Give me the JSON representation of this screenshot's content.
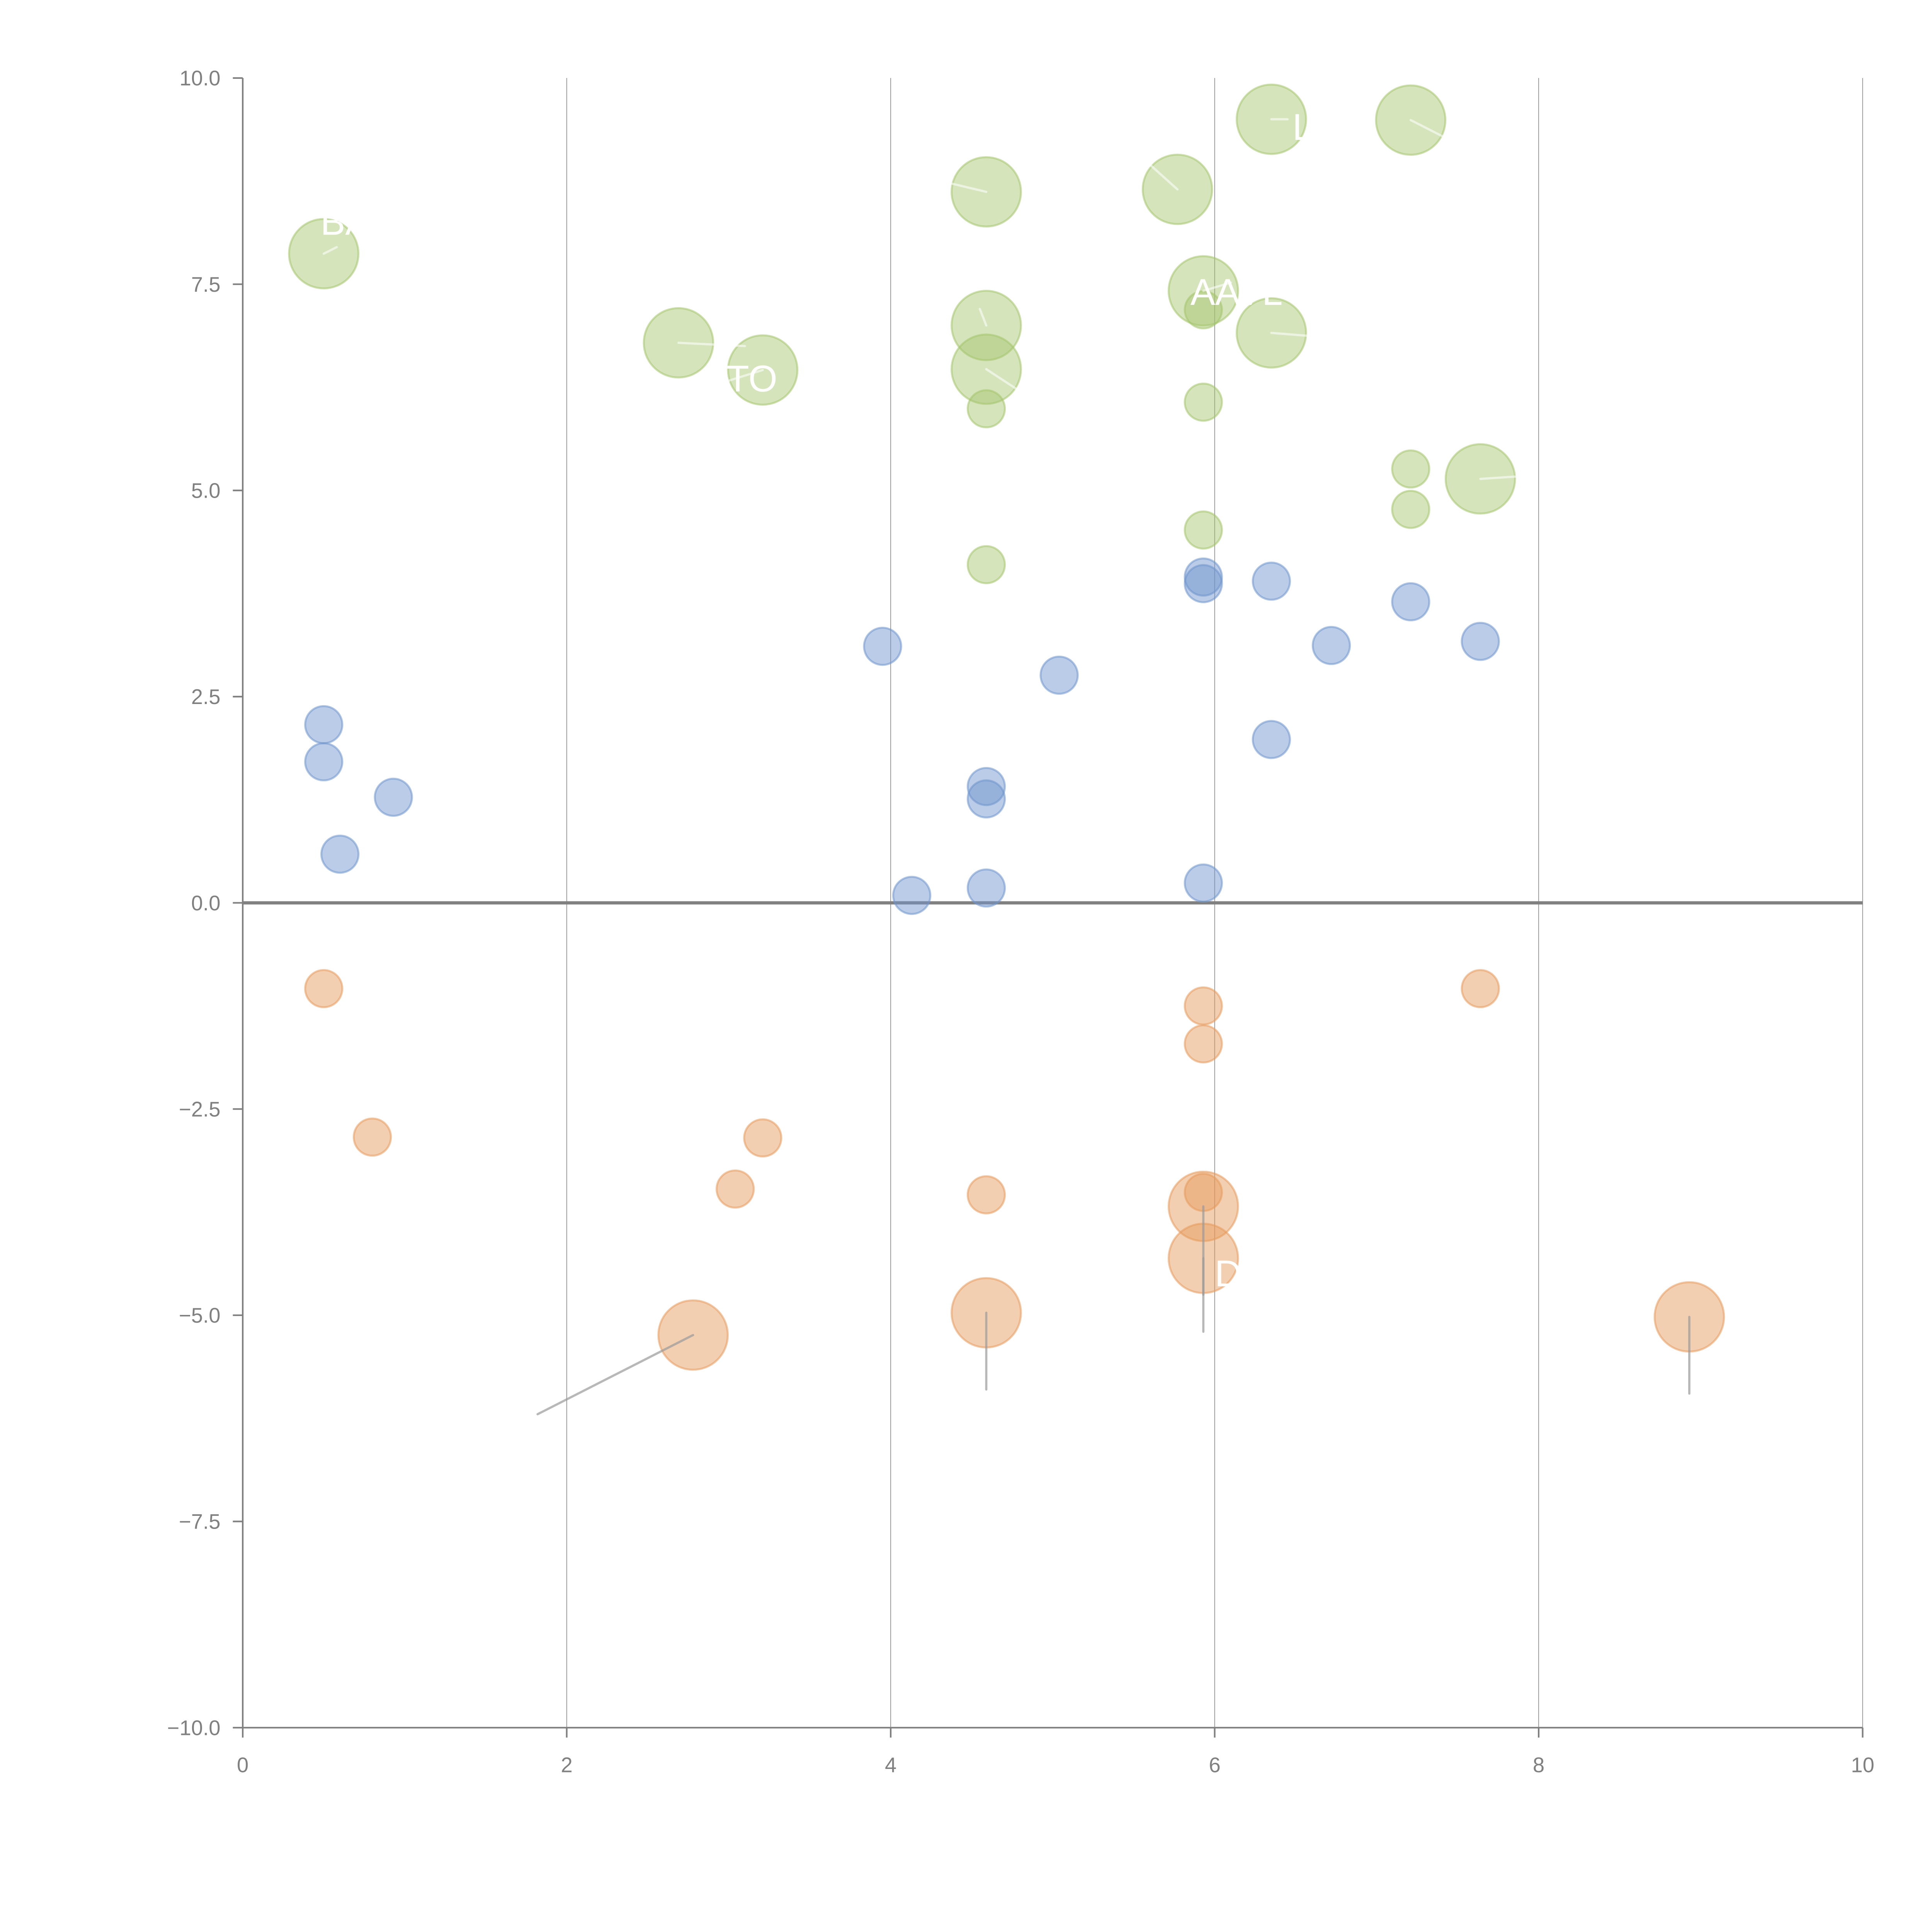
{
  "chart_data": {
    "type": "scatter",
    "title": "",
    "xlabel": "",
    "ylabel": "",
    "xlim": [
      0,
      10
    ],
    "ylim": [
      -10,
      10
    ],
    "grid": "vertical gridlines at x ticks",
    "zero_line": true,
    "legend": "none",
    "x_ticks": [
      "0",
      "2",
      "4",
      "6",
      "8",
      "10"
    ],
    "x_tick_values": [
      0,
      2,
      4,
      6,
      8,
      10
    ],
    "y_ticks": [
      "10.0",
      "7.5",
      "5.0",
      "2.5",
      "0.0",
      "−2.5",
      "−5.0",
      "−7.5",
      "−10.0"
    ],
    "y_tick_values": [
      10,
      7.5,
      5,
      2.5,
      0,
      -2.5,
      -5,
      -7.5,
      -10
    ],
    "series": [
      {
        "name": "blue",
        "color": "#6f95cc",
        "points": [
          {
            "x": 0.5,
            "y": 2.16,
            "size": "small"
          },
          {
            "x": 0.5,
            "y": 1.71,
            "size": "small"
          },
          {
            "x": 0.93,
            "y": 1.28,
            "size": "small"
          },
          {
            "x": 0.6,
            "y": 0.59,
            "size": "small"
          },
          {
            "x": 3.95,
            "y": 3.11,
            "size": "small"
          },
          {
            "x": 4.13,
            "y": 0.09,
            "size": "small"
          },
          {
            "x": 5.04,
            "y": 2.76,
            "size": "small"
          },
          {
            "x": 4.59,
            "y": 1.41,
            "size": "small"
          },
          {
            "x": 4.59,
            "y": 1.26,
            "size": "small"
          },
          {
            "x": 4.59,
            "y": 0.18,
            "size": "small"
          },
          {
            "x": 5.93,
            "y": 3.95,
            "size": "small"
          },
          {
            "x": 5.93,
            "y": 3.87,
            "size": "small"
          },
          {
            "x": 5.93,
            "y": 0.24,
            "size": "small"
          },
          {
            "x": 6.35,
            "y": 3.9,
            "size": "small"
          },
          {
            "x": 6.72,
            "y": 3.12,
            "size": "small"
          },
          {
            "x": 6.35,
            "y": 1.98,
            "size": "small"
          },
          {
            "x": 7.21,
            "y": 3.65,
            "size": "small"
          },
          {
            "x": 7.64,
            "y": 3.17,
            "size": "small"
          }
        ]
      },
      {
        "name": "green",
        "color": "#a4c46b",
        "points": [
          {
            "x": 0.5,
            "y": 7.87,
            "size": "large",
            "label": "BA",
            "label_at": [
              0.58,
              7.95
            ],
            "label_text_at": [
              0.48,
              8.1
            ]
          },
          {
            "x": 2.69,
            "y": 6.79,
            "size": "large",
            "label_at": [
              3.1,
              6.75
            ]
          },
          {
            "x": 3.21,
            "y": 6.46,
            "size": "large",
            "label": "ATO",
            "label_at": [
              2.95,
              6.3
            ],
            "label_text_at": [
              2.85,
              6.2
            ]
          },
          {
            "x": 4.59,
            "y": 8.62,
            "size": "large",
            "label_at": [
              4.1,
              8.85
            ]
          },
          {
            "x": 4.59,
            "y": 7.0,
            "size": "large",
            "label_at": [
              4.55,
              7.2
            ]
          },
          {
            "x": 4.59,
            "y": 6.47,
            "size": "large",
            "label_at": [
              4.8,
              6.2
            ]
          },
          {
            "x": 4.59,
            "y": 5.99,
            "size": "small"
          },
          {
            "x": 4.59,
            "y": 4.1,
            "size": "small"
          },
          {
            "x": 5.77,
            "y": 8.65,
            "size": "large",
            "label_at": [
              5.6,
              8.95
            ]
          },
          {
            "x": 5.93,
            "y": 7.42,
            "size": "large",
            "label": "AAVL",
            "label_at": [
              6.1,
              7.52
            ],
            "label_text_at": [
              5.85,
              7.25
            ]
          },
          {
            "x": 5.93,
            "y": 7.19,
            "size": "small"
          },
          {
            "x": 5.93,
            "y": 6.07,
            "size": "small"
          },
          {
            "x": 5.93,
            "y": 4.52,
            "size": "small"
          },
          {
            "x": 6.35,
            "y": 9.5,
            "size": "large",
            "label": "L  R",
            "label_at": [
              6.45,
              9.5
            ],
            "label_text_at": [
              6.48,
              9.25
            ]
          },
          {
            "x": 6.35,
            "y": 6.91,
            "size": "large",
            "label_at": [
              6.8,
              6.84
            ]
          },
          {
            "x": 7.21,
            "y": 9.49,
            "size": "large",
            "label_at": [
              7.45,
              9.25
            ]
          },
          {
            "x": 7.21,
            "y": 5.26,
            "size": "small"
          },
          {
            "x": 7.21,
            "y": 4.77,
            "size": "small"
          },
          {
            "x": 7.64,
            "y": 5.14,
            "size": "large",
            "label_at": [
              7.95,
              5.18
            ]
          }
        ]
      },
      {
        "name": "orange",
        "color": "#e59a5c",
        "points": [
          {
            "x": 0.5,
            "y": -1.04,
            "size": "small"
          },
          {
            "x": 0.8,
            "y": -2.84,
            "size": "small"
          },
          {
            "x": 3.21,
            "y": -2.85,
            "size": "small"
          },
          {
            "x": 3.04,
            "y": -3.47,
            "size": "small"
          },
          {
            "x": 2.78,
            "y": -5.24,
            "size": "large",
            "label_at": [
              1.82,
              -6.2
            ]
          },
          {
            "x": 4.59,
            "y": -3.54,
            "size": "small"
          },
          {
            "x": 4.59,
            "y": -4.97,
            "size": "large",
            "label_at": [
              4.59,
              -5.9
            ]
          },
          {
            "x": 5.93,
            "y": -1.25,
            "size": "small"
          },
          {
            "x": 5.93,
            "y": -1.71,
            "size": "small"
          },
          {
            "x": 5.93,
            "y": -3.51,
            "size": "small"
          },
          {
            "x": 5.93,
            "y": -3.68,
            "size": "large",
            "label_at": [
              5.93,
              -5.2
            ]
          },
          {
            "x": 5.93,
            "y": -4.31,
            "size": "large",
            "label": "D",
            "label_at": [
              5.93,
              -4.75
            ],
            "label_text_at": [
              6.0,
              -4.65
            ]
          },
          {
            "x": 7.64,
            "y": -1.04,
            "size": "small"
          },
          {
            "x": 8.93,
            "y": -5.02,
            "size": "large",
            "label_at": [
              8.93,
              -5.95
            ]
          }
        ]
      }
    ]
  }
}
